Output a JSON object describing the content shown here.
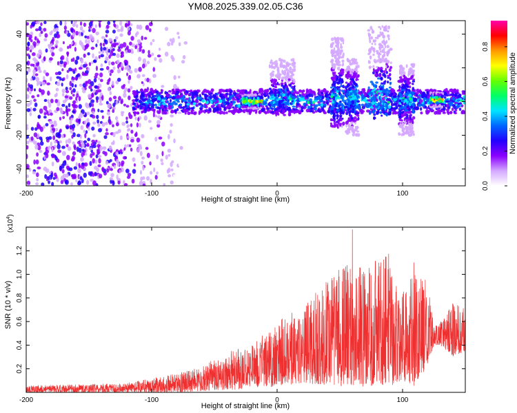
{
  "chart_data": [
    {
      "type": "heatmap",
      "title": "YM08.2025.339.02.05.C36",
      "xlabel": "Height of straight line (km)",
      "ylabel": "Frequency (Hz)",
      "xlim": [
        -200,
        150
      ],
      "ylim": [
        -50,
        48
      ],
      "xticks": [
        -200,
        -100,
        0,
        100
      ],
      "xtick_labels": [
        "-200",
        "-100",
        "0",
        "100"
      ],
      "yticks": [
        -40,
        -20,
        0,
        20,
        40
      ],
      "ytick_labels": [
        "-40",
        "-20",
        "0",
        "20",
        "40"
      ],
      "colorbar": {
        "label": "Normalized spectral amplitude",
        "range": [
          0,
          0.95
        ],
        "ticks": [
          0,
          0.2,
          0.4,
          0.6,
          0.8
        ],
        "tick_labels": [
          "0.0",
          "0.2",
          "0.4",
          "0.6",
          "0.8"
        ],
        "colors": [
          "#ffffff",
          "#d4a8ff",
          "#8a00ff",
          "#2200ff",
          "#0066ff",
          "#00e5ff",
          "#00ff66",
          "#66ff00",
          "#ffff00",
          "#ff9900",
          "#ff0000",
          "#ff00aa"
        ]
      },
      "noise_band": {
        "x_range": [
          -200,
          -70
        ],
        "freq_range": [
          -50,
          48
        ],
        "typical_amplitude": 0.08
      },
      "signal_band": {
        "x_range": [
          -115,
          150
        ],
        "center_freq": 0,
        "half_width_hz": 7
      },
      "bursts": [
        {
          "x": -20,
          "width": 15,
          "freq_extent": [
            -4,
            4
          ],
          "peak_amplitude": 0.9
        },
        {
          "x": 4,
          "width": 20,
          "freq_extent": [
            -8,
            25
          ],
          "peak_amplitude": 0.5
        },
        {
          "x": 48,
          "width": 10,
          "freq_extent": [
            -15,
            38
          ],
          "peak_amplitude": 0.5
        },
        {
          "x": 60,
          "width": 10,
          "freq_extent": [
            -20,
            25
          ],
          "peak_amplitude": 0.5
        },
        {
          "x": 82,
          "width": 18,
          "freq_extent": [
            -10,
            45
          ],
          "peak_amplitude": 0.55
        },
        {
          "x": 103,
          "width": 12,
          "freq_extent": [
            -20,
            22
          ],
          "peak_amplitude": 0.5
        },
        {
          "x": 127,
          "width": 10,
          "freq_extent": [
            -3,
            5
          ],
          "peak_amplitude": 0.9
        }
      ]
    },
    {
      "type": "line",
      "xlabel": "Height of straight line (km)",
      "ylabel": "SNR (10 * v/v)",
      "y_scale_label": "(x10",
      "y_scale_exponent": "4",
      "y_scale_suffix": ")",
      "xlim": [
        -200,
        150
      ],
      "ylim": [
        0,
        1.4
      ],
      "xticks": [
        -200,
        -100,
        0,
        100
      ],
      "xtick_labels": [
        "-200",
        "-100",
        "0",
        "100"
      ],
      "yticks": [
        0.2,
        0.4,
        0.6,
        0.8,
        1.0,
        1.2
      ],
      "ytick_labels": [
        "0.2",
        "0.4",
        "0.6",
        "0.8",
        "1.0",
        "1.2"
      ],
      "color": "#ee3030",
      "envelope": {
        "x": [
          -200,
          -150,
          -120,
          -100,
          -80,
          -60,
          -40,
          -20,
          0,
          20,
          40,
          50,
          60,
          70,
          80,
          90,
          100,
          110,
          120,
          125,
          130,
          140,
          150
        ],
        "lower": [
          0.0,
          0.0,
          0.0,
          0.0,
          0.0,
          0.01,
          0.02,
          0.03,
          0.05,
          0.08,
          0.06,
          0.05,
          0.05,
          0.05,
          0.05,
          0.05,
          0.1,
          0.05,
          0.2,
          0.4,
          0.4,
          0.3,
          0.35
        ],
        "upper": [
          0.06,
          0.07,
          0.08,
          0.12,
          0.16,
          0.22,
          0.35,
          0.4,
          0.6,
          0.75,
          0.95,
          1.05,
          1.1,
          1.05,
          1.15,
          1.2,
          0.9,
          1.0,
          0.95,
          0.55,
          0.6,
          0.75,
          0.75
        ]
      },
      "peaks": [
        {
          "x": 60,
          "y": 1.38
        },
        {
          "x": 44,
          "y": 0.95
        },
        {
          "x": 86,
          "y": 1.05
        },
        {
          "x": 109,
          "y": 1.1
        },
        {
          "x": 140,
          "y": 0.75
        }
      ]
    }
  ]
}
